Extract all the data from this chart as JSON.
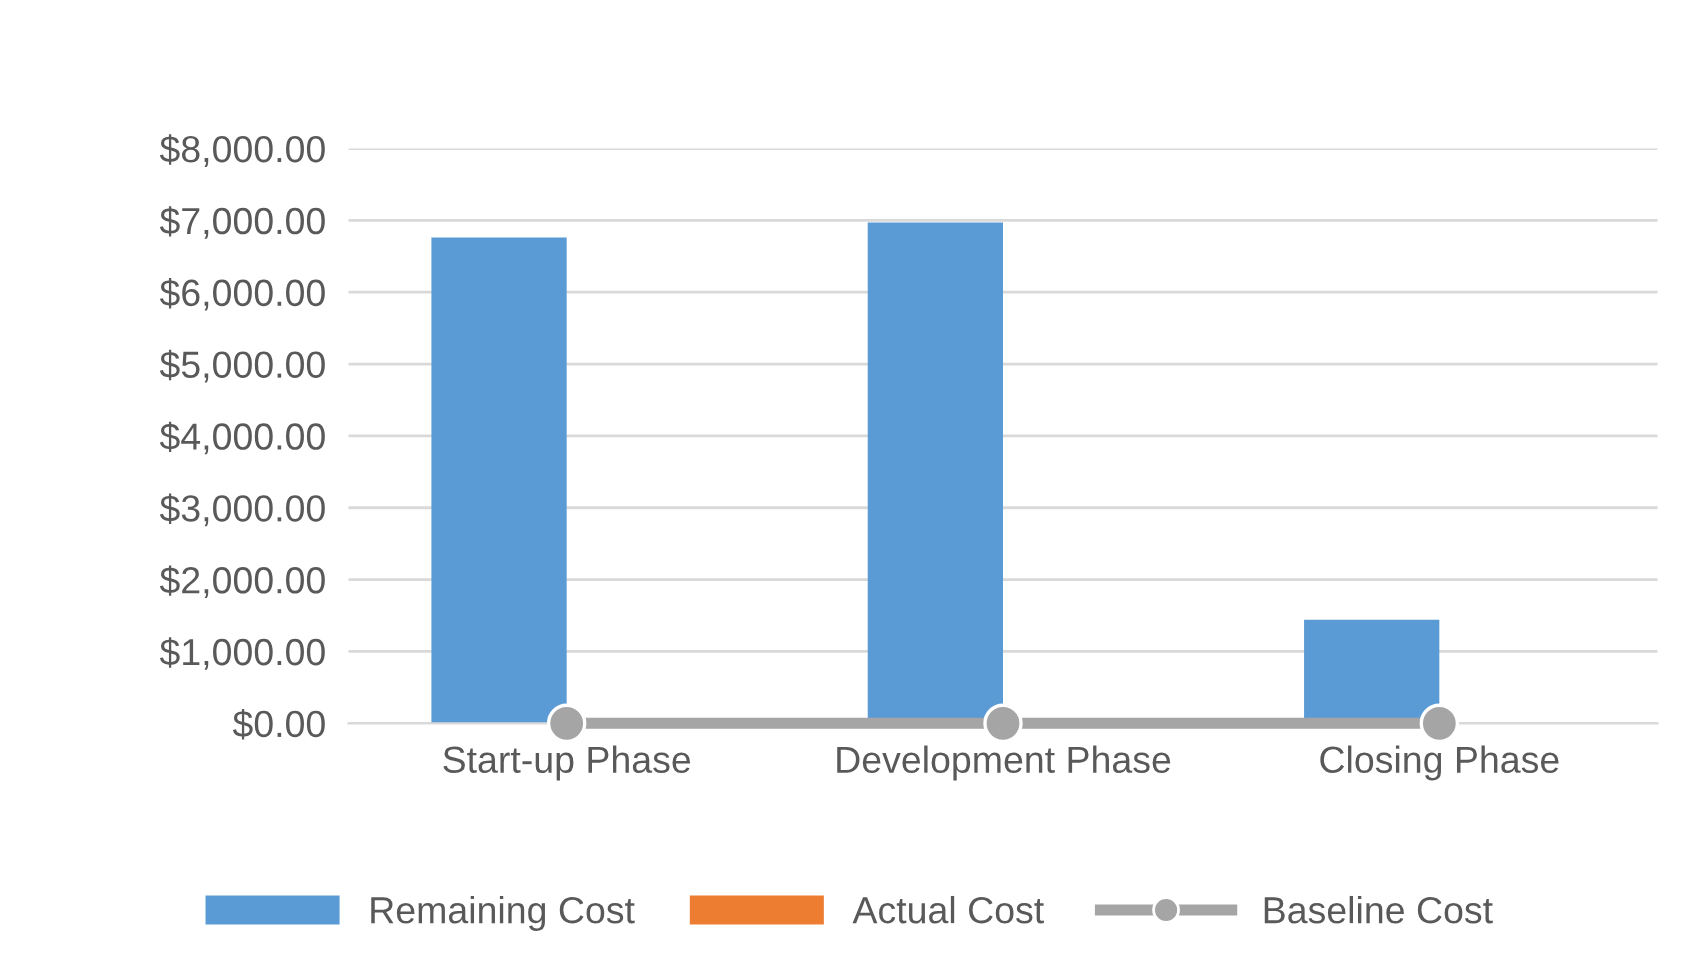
{
  "chart_data": {
    "type": "bar",
    "categories": [
      "Start-up Phase",
      "Development Phase",
      "Closing Phase"
    ],
    "series": [
      {
        "name": "Remaining Cost",
        "color": "#5b9bd5",
        "values": [
          6760,
          6970,
          1440
        ]
      },
      {
        "name": "Actual Cost",
        "color": "#ed7d31",
        "values": [
          0,
          0,
          0
        ]
      },
      {
        "name": "Baseline Cost",
        "type": "line",
        "color": "#a5a5a5",
        "marker": "circle",
        "values": [
          0,
          0,
          0
        ]
      }
    ],
    "ylim": [
      0,
      8000
    ],
    "yticks": [
      {
        "value": 0,
        "label": "$0.00"
      },
      {
        "value": 1000,
        "label": "$1,000.00"
      },
      {
        "value": 2000,
        "label": "$2,000.00"
      },
      {
        "value": 3000,
        "label": "$3,000.00"
      },
      {
        "value": 4000,
        "label": "$4,000.00"
      },
      {
        "value": 5000,
        "label": "$5,000.00"
      },
      {
        "value": 6000,
        "label": "$6,000.00"
      },
      {
        "value": 7000,
        "label": "$7,000.00"
      },
      {
        "value": 8000,
        "label": "$8,000.00"
      }
    ],
    "grid": "y",
    "legend": "bottom"
  }
}
